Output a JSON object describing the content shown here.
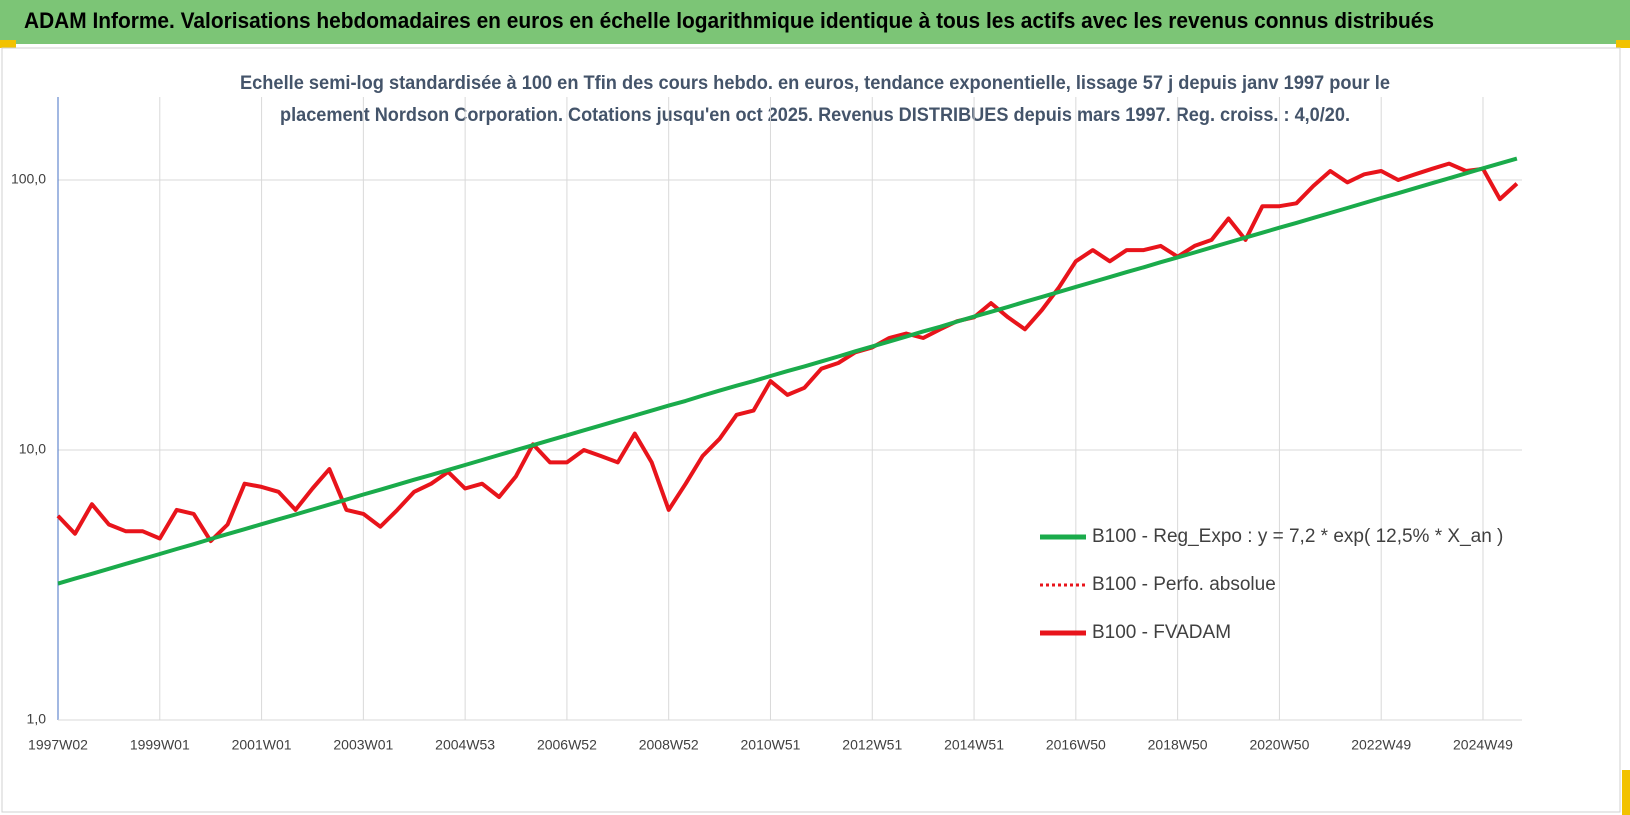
{
  "chart_data": {
    "type": "line",
    "title": "ADAM Informe. Valorisations hebdomadaires en euros en échelle logarithmique identique à tous les actifs avec les revenus connus distribués",
    "subtitle": [
      "Echelle semi-log standardisée à 100 en Tfin des cours hebdo. en euros, tendance exponentielle, lissage 57 j depuis janv 1997 pour le",
      "placement Nordson Corporation. Cotations jusqu'en oct 2025. Revenus DISTRIBUES depuis mars 1997. Reg. croiss. : 4,0/20."
    ],
    "categories": [
      "1997W02",
      null,
      null,
      null,
      null,
      null,
      "1999W01",
      null,
      null,
      null,
      null,
      null,
      "2001W01",
      null,
      null,
      null,
      null,
      null,
      "2003W01",
      null,
      null,
      null,
      null,
      null,
      "2004W53",
      null,
      null,
      null,
      null,
      null,
      "2006W52",
      null,
      null,
      null,
      null,
      null,
      "2008W52",
      null,
      null,
      null,
      null,
      null,
      "2010W51",
      null,
      null,
      null,
      null,
      null,
      "2012W51",
      null,
      null,
      null,
      null,
      null,
      "2014W51",
      null,
      null,
      null,
      null,
      null,
      "2016W50",
      null,
      null,
      null,
      null,
      null,
      "2018W50",
      null,
      null,
      null,
      null,
      null,
      "2020W50",
      null,
      null,
      null,
      null,
      null,
      "2022W49",
      null,
      null,
      null,
      null,
      null,
      "2024W49",
      null,
      null
    ],
    "series": [
      {
        "name": "B100 - Reg_Expo : y = 7,2 * exp( 12,5% *  X_an )",
        "color": "#1aab4b",
        "dash": "solid",
        "values": [
          3.2,
          3.34,
          3.48,
          3.63,
          3.79,
          3.95,
          4.12,
          4.3,
          4.48,
          4.68,
          4.88,
          5.09,
          5.31,
          5.54,
          5.77,
          6.02,
          6.28,
          6.55,
          6.84,
          7.13,
          7.44,
          7.76,
          8.09,
          8.44,
          8.8,
          9.18,
          9.58,
          9.99,
          10.42,
          10.87,
          11.34,
          11.83,
          12.34,
          12.87,
          13.42,
          14.0,
          14.6,
          15.2,
          15.9,
          16.6,
          17.3,
          18.0,
          18.8,
          19.6,
          20.4,
          21.3,
          22.2,
          23.2,
          24.2,
          25.2,
          26.3,
          27.5,
          28.6,
          29.9,
          31.2,
          32.5,
          33.9,
          35.4,
          36.9,
          38.5,
          40.2,
          41.9,
          43.7,
          45.6,
          47.5,
          49.6,
          51.7,
          53.9,
          56.3,
          58.7,
          61.2,
          63.8,
          66.6,
          69.4,
          72.4,
          75.5,
          78.8,
          82.2,
          85.8,
          89.4,
          93.3,
          97.3,
          101.5,
          105.9,
          110.5,
          115.2,
          120
        ]
      },
      {
        "name": "B100 - Perfo. absolue",
        "color": "#e8141b",
        "dash": "dotted",
        "values": [
          5.7,
          4.9,
          6.3,
          5.3,
          5.0,
          5.0,
          4.7,
          6.0,
          5.8,
          4.6,
          5.3,
          7.5,
          7.3,
          7.0,
          6.0,
          7.2,
          8.5,
          6.0,
          5.8,
          5.2,
          6.0,
          7.0,
          7.5,
          8.3,
          7.2,
          7.5,
          6.7,
          8.0,
          10.5,
          9.0,
          9.0,
          10.0,
          9.5,
          9.0,
          11.5,
          9.0,
          6.0,
          7.5,
          9.5,
          11.0,
          13.5,
          14.0,
          18.0,
          16.0,
          17.0,
          20.0,
          21.0,
          23.0,
          24.0,
          26.0,
          27.0,
          26.0,
          28.0,
          30.0,
          31.0,
          35.0,
          31.0,
          28.0,
          33.0,
          40.0,
          50.0,
          55.0,
          50.0,
          55.0,
          55.0,
          57.0,
          52.0,
          57.0,
          60.0,
          72.0,
          60.0,
          80.0,
          80.0,
          82.0,
          95.0,
          108.0,
          98.0,
          105.0,
          108.0,
          100.0,
          105.0,
          110.0,
          115.0,
          108.0,
          110.0,
          85.0,
          97.0
        ]
      },
      {
        "name": "B100 - FVADAM",
        "color": "#e8141b",
        "dash": "solid",
        "values": [
          5.7,
          4.9,
          6.3,
          5.3,
          5.0,
          5.0,
          4.7,
          6.0,
          5.8,
          4.6,
          5.3,
          7.5,
          7.3,
          7.0,
          6.0,
          7.2,
          8.5,
          6.0,
          5.8,
          5.2,
          6.0,
          7.0,
          7.5,
          8.3,
          7.2,
          7.5,
          6.7,
          8.0,
          10.5,
          9.0,
          9.0,
          10.0,
          9.5,
          9.0,
          11.5,
          9.0,
          6.0,
          7.5,
          9.5,
          11.0,
          13.5,
          14.0,
          18.0,
          16.0,
          17.0,
          20.0,
          21.0,
          23.0,
          24.0,
          26.0,
          27.0,
          26.0,
          28.0,
          30.0,
          31.0,
          35.0,
          31.0,
          28.0,
          33.0,
          40.0,
          50.0,
          55.0,
          50.0,
          55.0,
          55.0,
          57.0,
          52.0,
          57.0,
          60.0,
          72.0,
          60.0,
          80.0,
          80.0,
          82.0,
          95.0,
          108.0,
          98.0,
          105.0,
          108.0,
          100.0,
          105.0,
          110.0,
          115.0,
          108.0,
          110.0,
          85.0,
          97.0
        ]
      }
    ],
    "ylim": [
      1,
      203
    ],
    "log_y": true,
    "yticks": [
      {
        "value": 1,
        "label": "1,0"
      },
      {
        "value": 10,
        "label": "10,0"
      },
      {
        "value": 100,
        "label": "100,0"
      }
    ],
    "grid": true,
    "legend": "right"
  }
}
